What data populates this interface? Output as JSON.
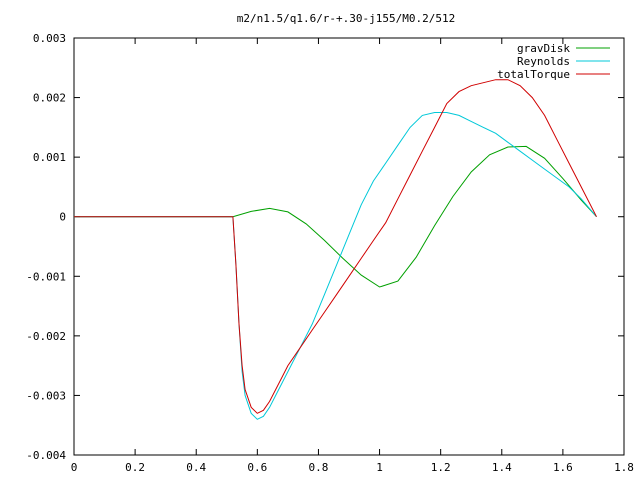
{
  "chart_data": {
    "type": "line",
    "title": "m2/n1.5/q1.6/r-+.30-j155/M0.2/512",
    "xlabel": "",
    "ylabel": "",
    "xlim": [
      0,
      1.8
    ],
    "ylim": [
      -0.004,
      0.003
    ],
    "grid": false,
    "legend_position": "top-right",
    "x_ticks": [
      "0",
      "0.2",
      "0.4",
      "0.6",
      "0.8",
      "1",
      "1.2",
      "1.4",
      "1.6",
      "1.8"
    ],
    "y_ticks": [
      "0.003",
      "0.002",
      "0.001",
      "0",
      "-0.001",
      "-0.002",
      "-0.003",
      "-0.004"
    ],
    "series": [
      {
        "name": "gravDisk",
        "color": "#00a000",
        "x": [
          0,
          0.52,
          0.58,
          0.64,
          0.7,
          0.76,
          0.82,
          0.88,
          0.94,
          1.0,
          1.06,
          1.12,
          1.18,
          1.24,
          1.3,
          1.36,
          1.42,
          1.48,
          1.54,
          1.6,
          1.66,
          1.71
        ],
        "y": [
          0,
          0,
          9e-05,
          0.00014,
          8e-05,
          -0.00012,
          -0.0004,
          -0.0007,
          -0.00098,
          -0.00118,
          -0.00108,
          -0.00068,
          -0.00015,
          0.00034,
          0.00075,
          0.00104,
          0.00117,
          0.00118,
          0.00098,
          0.00064,
          0.00028,
          0
        ]
      },
      {
        "name": "Reynolds",
        "color": "#00c8d8",
        "x": [
          0,
          0.52,
          0.53,
          0.54,
          0.55,
          0.56,
          0.58,
          0.6,
          0.62,
          0.64,
          0.66,
          0.68,
          0.7,
          0.74,
          0.78,
          0.82,
          0.86,
          0.9,
          0.94,
          0.98,
          1.02,
          1.06,
          1.1,
          1.14,
          1.18,
          1.22,
          1.26,
          1.3,
          1.34,
          1.38,
          1.42,
          1.46,
          1.5,
          1.54,
          1.58,
          1.62,
          1.66,
          1.71
        ],
        "y": [
          0,
          0,
          -0.0008,
          -0.0018,
          -0.0026,
          -0.003,
          -0.0033,
          -0.0034,
          -0.00335,
          -0.0032,
          -0.003,
          -0.0028,
          -0.0026,
          -0.0022,
          -0.0018,
          -0.0013,
          -0.0008,
          -0.0003,
          0.0002,
          0.0006,
          0.0009,
          0.0012,
          0.0015,
          0.0017,
          0.00175,
          0.00175,
          0.0017,
          0.0016,
          0.0015,
          0.0014,
          0.00125,
          0.0011,
          0.00095,
          0.0008,
          0.00065,
          0.0005,
          0.0003,
          0
        ]
      },
      {
        "name": "totalTorque",
        "color": "#d00000",
        "x": [
          0,
          0.52,
          0.53,
          0.54,
          0.55,
          0.56,
          0.58,
          0.6,
          0.62,
          0.64,
          0.66,
          0.68,
          0.7,
          0.74,
          0.78,
          0.82,
          0.86,
          0.9,
          0.94,
          0.98,
          1.02,
          1.06,
          1.1,
          1.14,
          1.18,
          1.22,
          1.26,
          1.3,
          1.34,
          1.38,
          1.42,
          1.46,
          1.5,
          1.54,
          1.58,
          1.62,
          1.66,
          1.71
        ],
        "y": [
          0,
          0,
          -0.0008,
          -0.0018,
          -0.0025,
          -0.0029,
          -0.0032,
          -0.0033,
          -0.00325,
          -0.0031,
          -0.0029,
          -0.0027,
          -0.0025,
          -0.0022,
          -0.0019,
          -0.0016,
          -0.0013,
          -0.001,
          -0.0007,
          -0.0004,
          -0.0001,
          0.0003,
          0.0007,
          0.0011,
          0.0015,
          0.0019,
          0.0021,
          0.0022,
          0.00225,
          0.0023,
          0.0023,
          0.0022,
          0.002,
          0.0017,
          0.0013,
          0.0009,
          0.0005,
          0
        ]
      }
    ]
  }
}
